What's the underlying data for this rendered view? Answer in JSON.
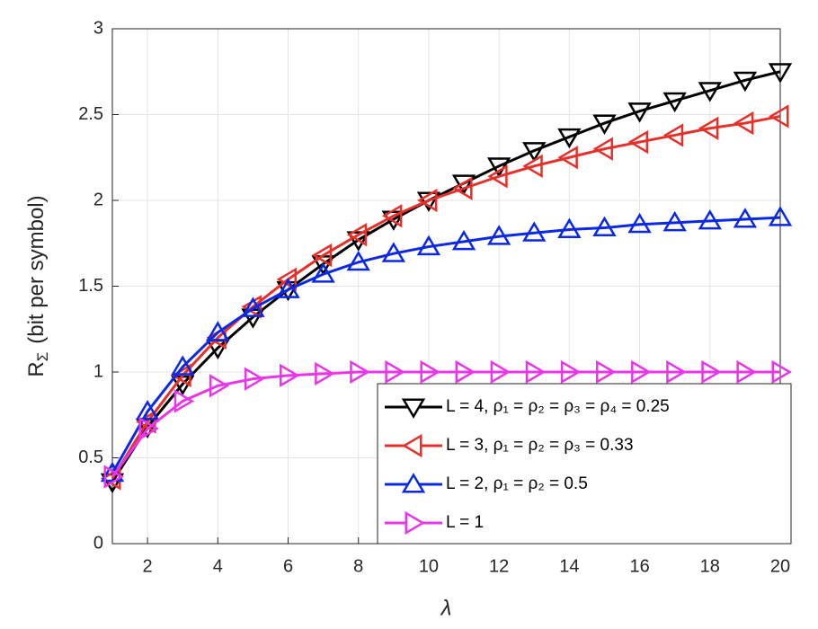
{
  "chart_data": {
    "type": "line",
    "xlabel": "λ",
    "ylabel": {
      "main": "R",
      "sub": "Σ",
      "suffix": "(bit per symbol)"
    },
    "x": [
      1,
      2,
      3,
      4,
      5,
      6,
      7,
      8,
      9,
      10,
      11,
      12,
      13,
      14,
      15,
      16,
      17,
      18,
      19,
      20
    ],
    "xlim": [
      1,
      20
    ],
    "xticks": [
      2,
      4,
      6,
      8,
      10,
      12,
      14,
      16,
      18,
      20
    ],
    "ylim": [
      0,
      3
    ],
    "yticks": [
      0,
      0.5,
      1,
      1.5,
      2,
      2.5,
      3
    ],
    "grid": true,
    "legend": "lower-right",
    "series": [
      {
        "name": "L = 4, ρ₁ = ρ₂ = ρ₃ = ρ₄ = 0.25",
        "color": "#000000",
        "marker": "triangle-down",
        "values": [
          0.36,
          0.68,
          0.93,
          1.14,
          1.32,
          1.48,
          1.63,
          1.77,
          1.89,
          2.0,
          2.1,
          2.2,
          2.29,
          2.37,
          2.45,
          2.52,
          2.58,
          2.64,
          2.7,
          2.75
        ]
      },
      {
        "name": "L = 3, ρ₁ = ρ₂ = ρ₃ = 0.33",
        "color": "#e8302a",
        "marker": "triangle-left",
        "values": [
          0.38,
          0.71,
          0.98,
          1.2,
          1.38,
          1.54,
          1.68,
          1.8,
          1.91,
          2.0,
          2.07,
          2.14,
          2.2,
          2.25,
          2.3,
          2.34,
          2.38,
          2.42,
          2.45,
          2.49
        ]
      },
      {
        "name": "L = 2, ρ₁ = ρ₂ = 0.5",
        "color": "#0a28e6",
        "marker": "triangle-up",
        "values": [
          0.41,
          0.77,
          1.03,
          1.23,
          1.37,
          1.48,
          1.57,
          1.64,
          1.69,
          1.73,
          1.76,
          1.79,
          1.81,
          1.83,
          1.84,
          1.86,
          1.87,
          1.88,
          1.89,
          1.9
        ]
      },
      {
        "name": "L = 1",
        "color": "#e836e8",
        "marker": "triangle-right",
        "values": [
          0.39,
          0.67,
          0.83,
          0.92,
          0.96,
          0.98,
          0.99,
          1.0,
          1.0,
          1.0,
          1.0,
          1.0,
          1.0,
          1.0,
          1.0,
          1.0,
          1.0,
          1.0,
          1.0,
          1.0
        ]
      }
    ]
  }
}
